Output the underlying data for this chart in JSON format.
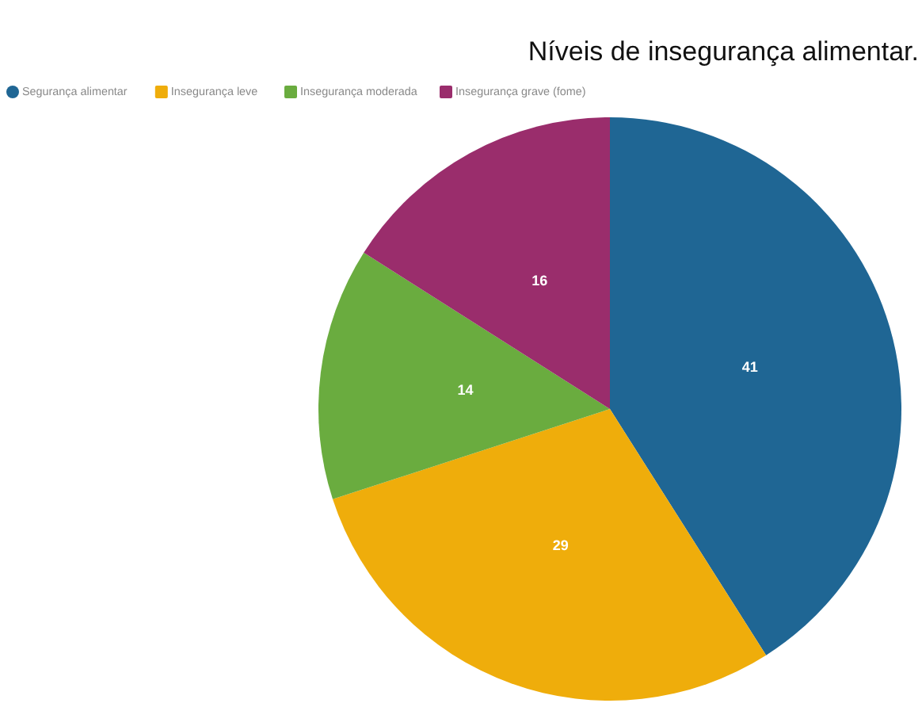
{
  "chart_data": {
    "type": "pie",
    "title": "Níveis de insegurança alimentar.",
    "categories": [
      "Segurança alimentar",
      "Insegurança leve",
      "Insegurança moderada",
      "Insegurança grave (fome)"
    ],
    "values": [
      41,
      29,
      14,
      16
    ],
    "colors": [
      "#1f6694",
      "#efad0b",
      "#6aac3f",
      "#9a2d6c"
    ],
    "data_labels": true,
    "legend": "top"
  }
}
